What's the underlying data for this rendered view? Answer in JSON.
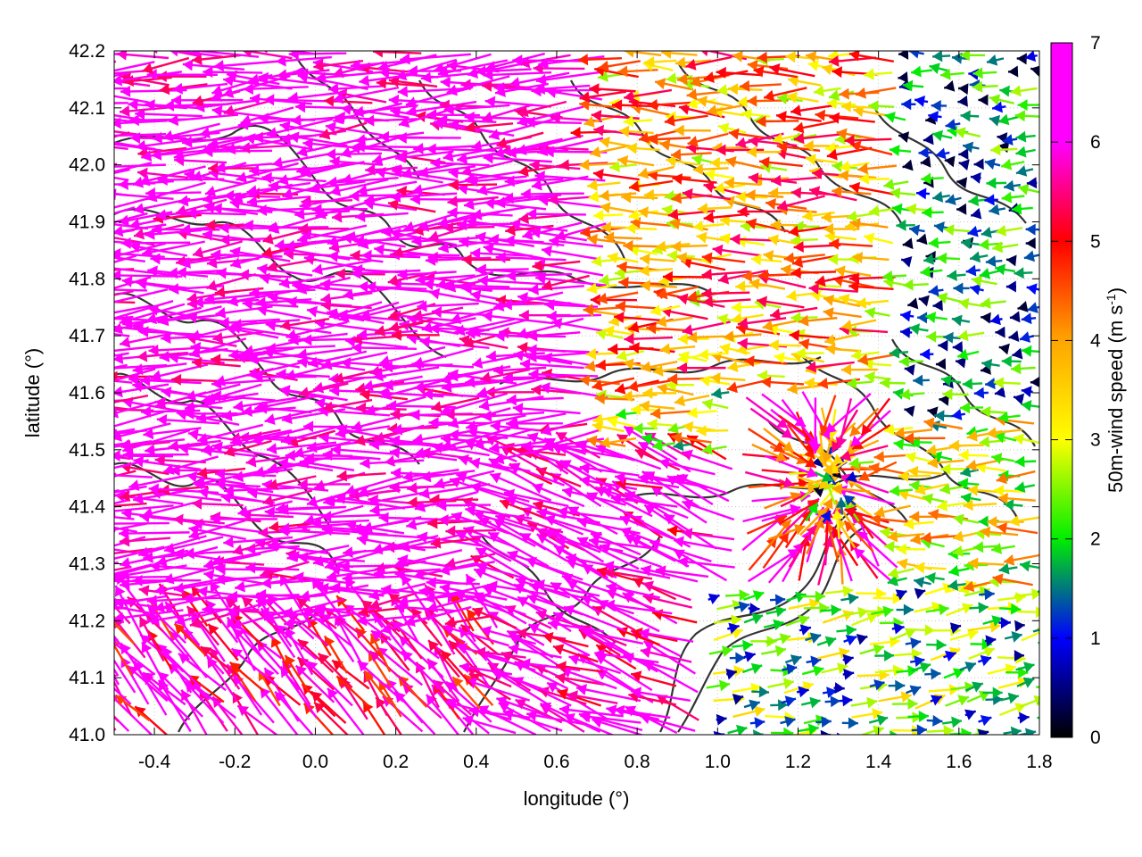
{
  "chart_data": {
    "type": "vector-field",
    "xlabel": "longitude (°)",
    "ylabel": "latitude (°)",
    "xlim": [
      -0.5,
      1.8
    ],
    "ylim": [
      41.0,
      42.2
    ],
    "xticks": [
      "-0.4",
      "-0.2",
      "0.0",
      "0.2",
      "0.4",
      "0.6",
      "0.8",
      "1.0",
      "1.2",
      "1.4",
      "1.6",
      "1.8"
    ],
    "yticks": [
      "41.0",
      "41.1",
      "41.2",
      "41.3",
      "41.4",
      "41.5",
      "41.6",
      "41.7",
      "41.8",
      "41.9",
      "42.0",
      "42.1",
      "42.2"
    ],
    "grid": true,
    "colorbar": {
      "label_main": "50m-wind speed (m s",
      "label_sup": "-1",
      "label_end": ")",
      "range": [
        0,
        7
      ],
      "ticks": [
        "0",
        "1",
        "2",
        "3",
        "4",
        "5",
        "6",
        "7"
      ],
      "colors": [
        "#000000",
        "#0000ff",
        "#00ee00",
        "#ffff00",
        "#ffa500",
        "#ff0000",
        "#ff00ff"
      ]
    },
    "wind_regions": [
      {
        "lon": [
          -0.5,
          0.75
        ],
        "lat": [
          41.2,
          42.2
        ],
        "direction_deg": 183,
        "speed": 6.8
      },
      {
        "lon": [
          -0.5,
          0.45
        ],
        "lat": [
          41.0,
          41.2
        ],
        "direction_deg": 130,
        "speed": 6.0
      },
      {
        "lon": [
          0.45,
          1.05
        ],
        "lat": [
          41.0,
          41.5
        ],
        "direction_deg": 160,
        "speed": 6.5
      },
      {
        "lon": [
          0.75,
          1.45
        ],
        "lat": [
          41.6,
          42.2
        ],
        "direction_deg": 180,
        "speed": 4.0
      },
      {
        "lon": [
          0.95,
          1.8
        ],
        "lat": [
          41.0,
          41.25
        ],
        "direction_deg": 10,
        "speed": 2.0
      },
      {
        "lon": [
          1.45,
          1.8
        ],
        "lat": [
          41.55,
          42.2
        ],
        "direction_deg": 180,
        "speed": 1.2
      },
      {
        "lon": [
          1.05,
          1.45
        ],
        "lat": [
          41.25,
          41.6
        ],
        "convergence_point": [
          1.28,
          41.45
        ],
        "speed": 5.5
      }
    ],
    "contours": "terrain elevation isolines (dark gray)"
  }
}
